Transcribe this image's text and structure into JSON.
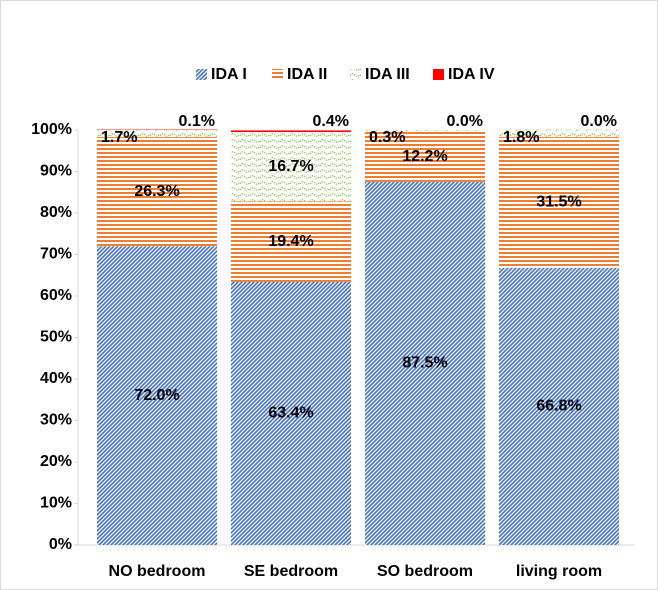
{
  "chart_data": {
    "type": "bar",
    "stacked": true,
    "categories": [
      "NO bedroom",
      "SE bedroom",
      "SO bedroom",
      "living room"
    ],
    "series": [
      {
        "name": "IDA I",
        "color": "#4472c4",
        "values": [
          72.0,
          63.4,
          87.5,
          66.8
        ],
        "value_labels": [
          "72.0%",
          "63.4%",
          "87.5%",
          "66.8%"
        ]
      },
      {
        "name": "IDA II",
        "color": "#ed7d31",
        "values": [
          26.3,
          19.4,
          12.2,
          31.5
        ],
        "value_labels": [
          "26.3%",
          "19.4%",
          "12.2%",
          "31.5%"
        ]
      },
      {
        "name": "IDA III",
        "color": "#8fc45a",
        "values": [
          1.7,
          16.7,
          0.3,
          1.8
        ],
        "value_labels": [
          "1.7%",
          "16.7%",
          "0.3%",
          "1.8%"
        ]
      },
      {
        "name": "IDA IV",
        "color": "#ff0000",
        "values": [
          0.1,
          0.4,
          0.0,
          0.0
        ],
        "value_labels": [
          "0.1%",
          "0.4%",
          "0.0%",
          "0.0%"
        ]
      }
    ],
    "ylim": [
      0,
      100
    ],
    "yticks": [
      {
        "value": 0,
        "label": "0%"
      },
      {
        "value": 10,
        "label": "10%"
      },
      {
        "value": 20,
        "label": "20%"
      },
      {
        "value": 30,
        "label": "30%"
      },
      {
        "value": 40,
        "label": "40%"
      },
      {
        "value": 50,
        "label": "50%"
      },
      {
        "value": 60,
        "label": "60%"
      },
      {
        "value": 70,
        "label": "70%"
      },
      {
        "value": 80,
        "label": "80%"
      },
      {
        "value": 90,
        "label": "90%"
      },
      {
        "value": 100,
        "label": "100%"
      }
    ],
    "legend": "top"
  }
}
